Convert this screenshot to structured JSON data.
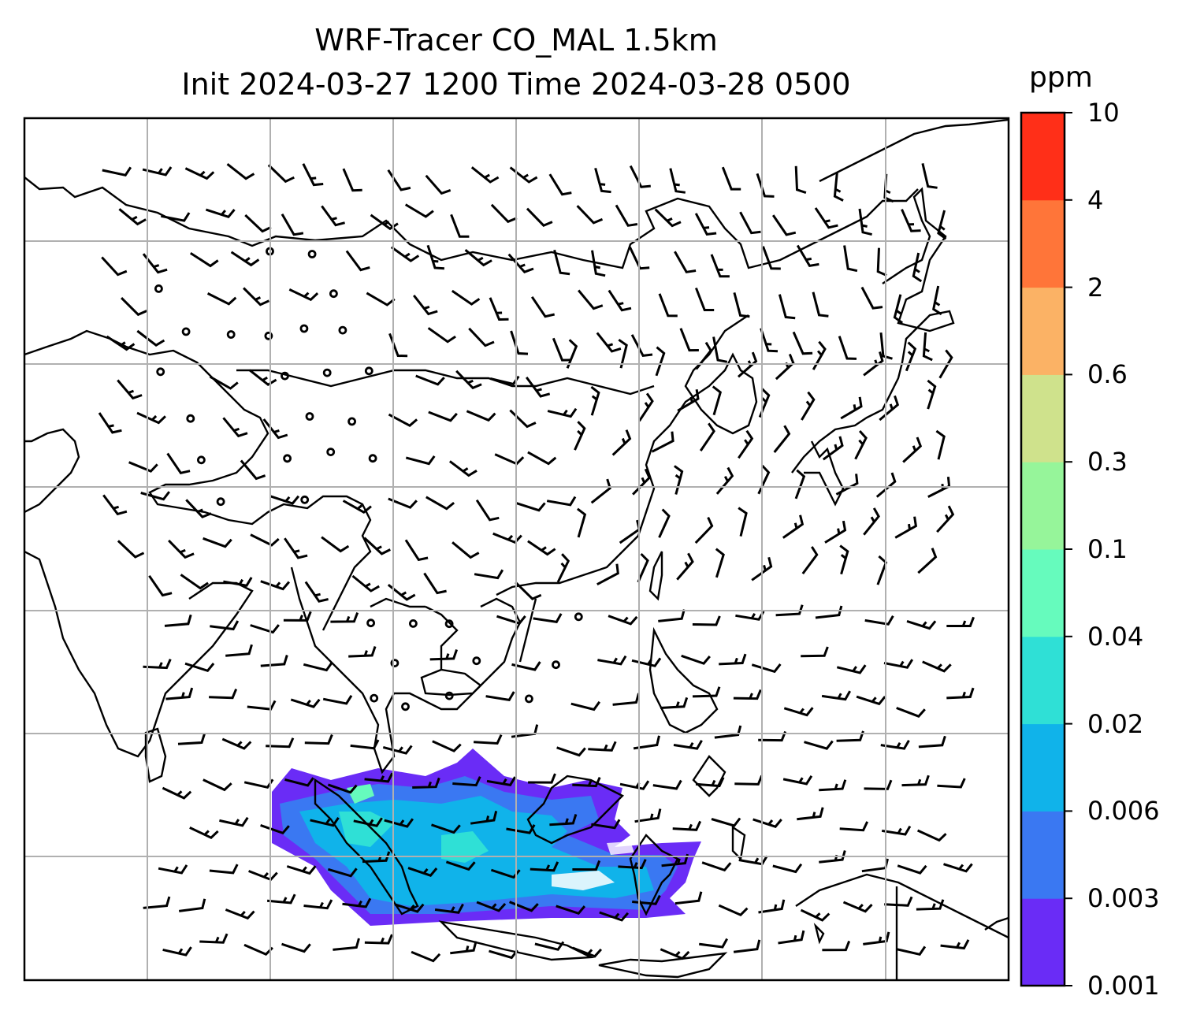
{
  "figure": {
    "title_line1": "WRF-Tracer CO_MAL 1.5km",
    "title_line2": "Init 2024-03-27 1200 Time 2024-03-28 0500"
  },
  "map": {
    "field": "CO_MAL tracer",
    "model_resolution": "1.5km",
    "projection_grid": "lat/lon gridlines",
    "coastlines": true,
    "wind_barbs": true,
    "colors": {
      "land_line": "#000000",
      "grid": "#b0b0b0",
      "barb": "#000000"
    }
  },
  "colorbar": {
    "unit": "ppm",
    "levels": [
      "0.001",
      "0.003",
      "0.006",
      "0.02",
      "0.04",
      "0.1",
      "0.3",
      "0.6",
      "2",
      "4",
      "10"
    ],
    "colors": [
      "#6a2cf6",
      "#3a78f2",
      "#10b3ea",
      "#2fe0d6",
      "#66fbbd",
      "#96f59a",
      "#cfe28c",
      "#fbb265",
      "#ff7539",
      "#ff2f18"
    ]
  }
}
